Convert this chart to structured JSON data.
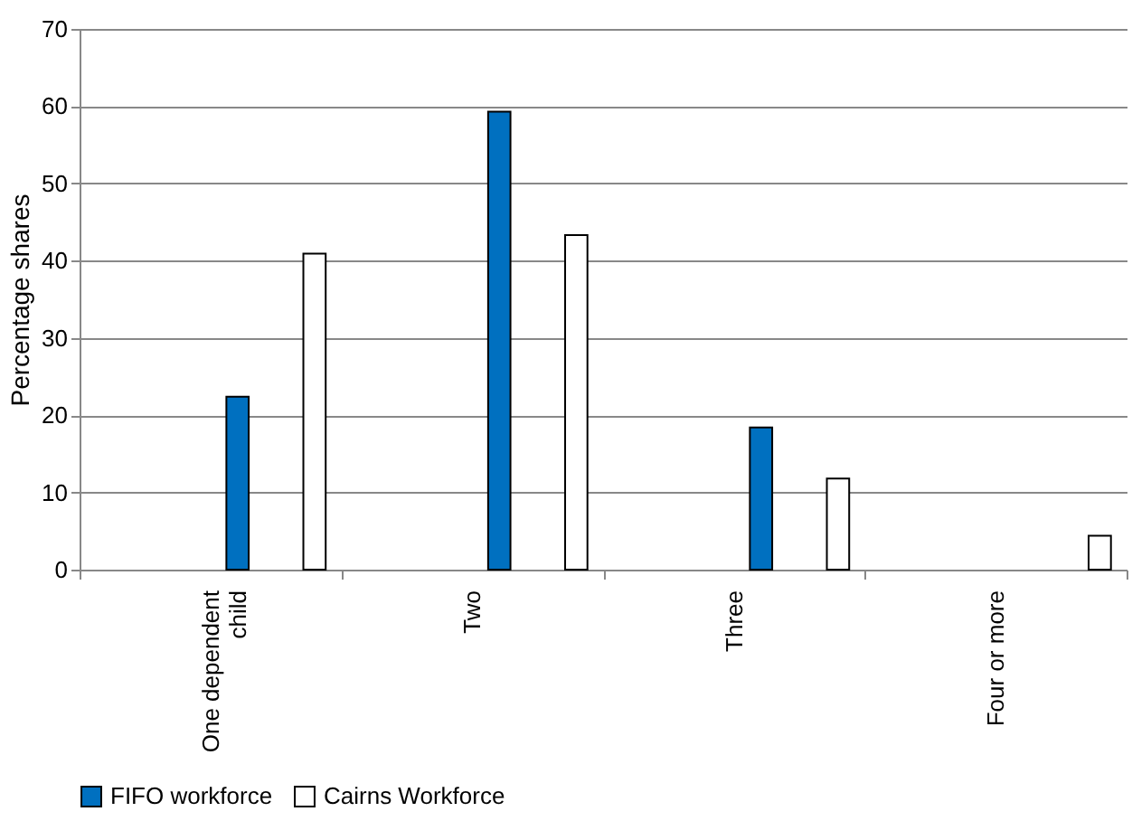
{
  "chart_data": {
    "type": "bar",
    "ylabel": "Percentage shares",
    "categories": [
      "One dependent child",
      "Two",
      "Three",
      "Four or more"
    ],
    "series": [
      {
        "name": "FIFO workforce",
        "color": "#0070c0",
        "values": [
          22.4,
          59.3,
          18.4,
          null
        ]
      },
      {
        "name": "Cairns Workforce",
        "color": "#ffffff",
        "values": [
          40.9,
          43.3,
          11.8,
          4.4
        ]
      }
    ],
    "ylim": [
      0,
      70
    ],
    "yticks": [
      0,
      10,
      20,
      30,
      40,
      50,
      60,
      70
    ],
    "grid": "y",
    "legend": "bottom"
  }
}
